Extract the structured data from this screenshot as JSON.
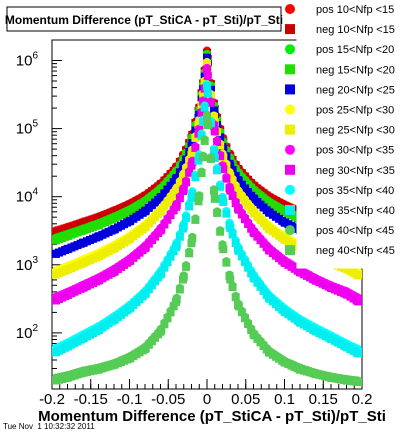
{
  "chart_data": {
    "type": "scatter",
    "title": "Momentum Difference (pT_StiCA - pT_Sti)/pT_Sti",
    "xlabel": "Momentum Difference (pT_StiCA - pT_Sti)/pT_Sti",
    "ylabel": "",
    "xlim": [
      -0.2,
      0.2
    ],
    "ylim": [
      15,
      2000000
    ],
    "y_scale": "log",
    "x_ticks": [
      "-0.2",
      "-0.15",
      "-0.1",
      "-0.05",
      "0",
      "0.05",
      "0.1",
      "0.15",
      "0.2"
    ],
    "x_tick_values": [
      -0.2,
      -0.15,
      -0.1,
      -0.05,
      0,
      0.05,
      0.1,
      0.15,
      0.2
    ],
    "y_ticks": [
      {
        "value": 100,
        "base": "10",
        "exp": "2"
      },
      {
        "value": 1000,
        "base": "10",
        "exp": "3"
      },
      {
        "value": 10000,
        "base": "10",
        "exp": "4"
      },
      {
        "value": 100000,
        "base": "10",
        "exp": "5"
      },
      {
        "value": 1000000,
        "base": "10",
        "exp": "6"
      }
    ],
    "legend_position": "right",
    "footer": "Tue Nov  1 10:32:32 2011",
    "x": [
      -0.195,
      -0.18,
      -0.16,
      -0.14,
      -0.12,
      -0.1,
      -0.08,
      -0.06,
      -0.04,
      -0.03,
      -0.02,
      -0.01,
      -0.005,
      0,
      0.005,
      0.01,
      0.02,
      0.03,
      0.04,
      0.06,
      0.08,
      0.1,
      0.12,
      0.14,
      0.16,
      0.18,
      0.195
    ],
    "series": [
      {
        "name": "pos 10<Nfp <15",
        "color": "#ff0000",
        "marker": "circle",
        "values": [
          3200,
          3600,
          4300,
          5100,
          6300,
          7900,
          10500,
          15500,
          27000,
          42000,
          76000,
          210000,
          480000,
          1400000,
          470000,
          205000,
          74000,
          41000,
          26500,
          15000,
          10200,
          7700,
          6100,
          4900,
          4100,
          3500,
          3100
        ]
      },
      {
        "name": "neg 10<Nfp <15",
        "color": "#cc0000",
        "marker": "square",
        "values": [
          3000,
          3400,
          4100,
          4900,
          6000,
          7600,
          10100,
          15000,
          26000,
          40500,
          73000,
          200000,
          460000,
          1300000,
          450000,
          195000,
          71000,
          39500,
          25500,
          14500,
          9800,
          7400,
          5900,
          4700,
          3900,
          3300,
          2900
        ]
      },
      {
        "name": "pos 15<Nfp <20",
        "color": "#00ee00",
        "marker": "circle",
        "values": [
          2500,
          2850,
          3400,
          4100,
          5100,
          6500,
          8800,
          13200,
          23500,
          37000,
          68000,
          190000,
          440000,
          1250000,
          430000,
          185000,
          66000,
          36000,
          23000,
          12900,
          8500,
          6300,
          4950,
          3950,
          3300,
          2800,
          2450
        ]
      },
      {
        "name": "neg 15<Nfp <20",
        "color": "#22dd00",
        "marker": "square",
        "values": [
          2300,
          2650,
          3200,
          3850,
          4800,
          6100,
          8300,
          12600,
          22500,
          35500,
          65000,
          182000,
          420000,
          1200000,
          410000,
          178000,
          63000,
          34500,
          22000,
          12300,
          8100,
          6000,
          4700,
          3750,
          3100,
          2650,
          2250
        ]
      },
      {
        "name": "neg 20<Nfp <25",
        "color": "#0000dd",
        "marker": "square",
        "values": [
          1450,
          1700,
          2100,
          2600,
          3300,
          4350,
          6100,
          9600,
          18000,
          29000,
          55000,
          160000,
          380000,
          1100000,
          370000,
          155000,
          54000,
          28500,
          17500,
          9400,
          5900,
          4200,
          3250,
          2550,
          2050,
          1700,
          1450
        ]
      },
      {
        "name": "pos 25<Nfp <30",
        "color": "#ffff00",
        "marker": "circle",
        "values": [
          820,
          960,
          1200,
          1500,
          1950,
          2650,
          3900,
          6500,
          13000,
          22000,
          44000,
          135000,
          330000,
          950000,
          320000,
          130000,
          43000,
          21500,
          12500,
          6300,
          3750,
          2600,
          1950,
          1500,
          1200,
          980,
          800
        ]
      },
      {
        "name": "neg 25<Nfp <30",
        "color": "#eeee00",
        "marker": "square",
        "values": [
          720,
          850,
          1060,
          1330,
          1740,
          2380,
          3550,
          6000,
          12100,
          20600,
          41500,
          128000,
          315000,
          900000,
          305000,
          124000,
          40500,
          20100,
          11600,
          5800,
          3400,
          2350,
          1750,
          1340,
          1060,
          870,
          700
        ]
      },
      {
        "name": "pos 30<Nfp <35",
        "color": "#ff00ff",
        "marker": "circle",
        "values": [
          340,
          400,
          510,
          650,
          870,
          1230,
          1900,
          3400,
          7500,
          13500,
          30000,
          100000,
          260000,
          780000,
          250000,
          96000,
          29000,
          13000,
          7100,
          3200,
          1780,
          1170,
          850,
          640,
          500,
          410,
          330
        ]
      },
      {
        "name": "neg 30<Nfp <35",
        "color": "#ee00ee",
        "marker": "square",
        "values": [
          300,
          360,
          460,
          590,
          790,
          1130,
          1760,
          3200,
          7100,
          12800,
          28500,
          95000,
          250000,
          740000,
          240000,
          91000,
          27500,
          12300,
          6700,
          3000,
          1650,
          1080,
          780,
          590,
          460,
          370,
          290
        ]
      },
      {
        "name": "pos 35<Nfp <40",
        "color": "#00ffff",
        "marker": "circle",
        "values": [
          60,
          72,
          95,
          125,
          175,
          255,
          410,
          800,
          2000,
          4000,
          10500,
          42000,
          135000,
          450000,
          130000,
          40000,
          10000,
          3800,
          1850,
          720,
          360,
          230,
          160,
          120,
          92,
          70,
          58
        ]
      },
      {
        "name": "neg 35<Nfp <40",
        "color": "#00eeee",
        "marker": "square",
        "values": [
          52,
          63,
          83,
          110,
          155,
          228,
          370,
          720,
          1820,
          3650,
          9600,
          39000,
          125000,
          420000,
          120000,
          37000,
          9200,
          3450,
          1680,
          650,
          325,
          205,
          143,
          106,
          82,
          62,
          50
        ]
      },
      {
        "name": "pos 40<Nfp <45",
        "color": "#55cc55",
        "marker": "circle",
        "values": [
          22,
          24,
          28,
          31,
          36,
          45,
          62,
          110,
          300,
          700,
          2200,
          10500,
          40000,
          160000,
          38000,
          9800,
          2000,
          640,
          270,
          100,
          55,
          39,
          31,
          26,
          23,
          21,
          20
        ]
      },
      {
        "name": "neg 40<Nfp <45",
        "color": "#55cc55",
        "marker": "square",
        "values": [
          20,
          22,
          26,
          29,
          34,
          42,
          58,
          104,
          285,
          660,
          2080,
          10000,
          38000,
          150000,
          36000,
          9300,
          1900,
          610,
          258,
          95,
          52,
          37,
          29,
          25,
          22,
          20,
          19
        ]
      }
    ]
  }
}
